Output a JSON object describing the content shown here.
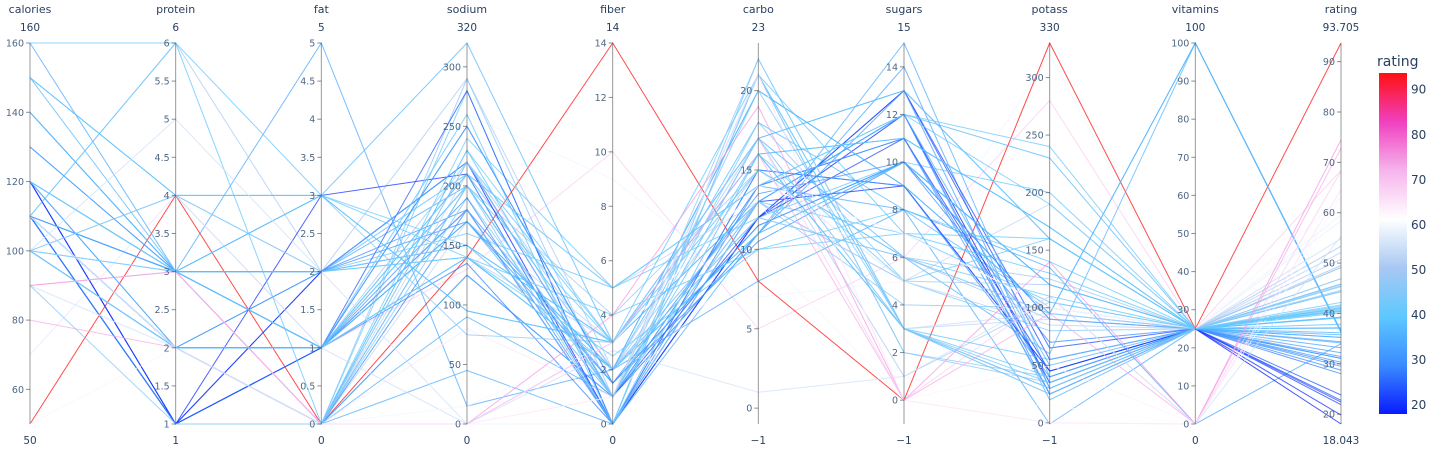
{
  "chart_data": {
    "type": "parallel_coordinates",
    "color_dimension": "rating",
    "colorbar": {
      "title": "rating",
      "range": [
        18.043,
        93.705
      ],
      "ticks": [
        20,
        30,
        40,
        50,
        60,
        70,
        80,
        90
      ],
      "colorscale": [
        "#0a1bff",
        "#3a8bff",
        "#5ec8ff",
        "#a8c8f2",
        "#ffffff",
        "#f6b4ec",
        "#f040c0",
        "#ff1010"
      ]
    },
    "axes": [
      {
        "label": "calories",
        "min": 50,
        "max": 160,
        "min_label": "50",
        "max_label": "160",
        "ticks": [
          60,
          80,
          100,
          120,
          140,
          160
        ]
      },
      {
        "label": "protein",
        "min": 1,
        "max": 6,
        "min_label": "1",
        "max_label": "6",
        "ticks": [
          1,
          1.5,
          2,
          2.5,
          3,
          3.5,
          4,
          4.5,
          5,
          5.5,
          6
        ]
      },
      {
        "label": "fat",
        "min": 0,
        "max": 5,
        "min_label": "0",
        "max_label": "5",
        "ticks": [
          0,
          0.5,
          1,
          1.5,
          2,
          2.5,
          3,
          3.5,
          4,
          4.5,
          5
        ]
      },
      {
        "label": "sodium",
        "min": 0,
        "max": 320,
        "min_label": "0",
        "max_label": "320",
        "ticks": [
          0,
          50,
          100,
          150,
          200,
          250,
          300
        ]
      },
      {
        "label": "fiber",
        "min": 0,
        "max": 14,
        "min_label": "0",
        "max_label": "14",
        "ticks": [
          0,
          2,
          4,
          6,
          8,
          10,
          12,
          14
        ]
      },
      {
        "label": "carbo",
        "min": -1,
        "max": 23,
        "min_label": "−1",
        "max_label": "23",
        "ticks": [
          0,
          5,
          10,
          15,
          20
        ]
      },
      {
        "label": "sugars",
        "min": -1,
        "max": 15,
        "min_label": "−1",
        "max_label": "15",
        "ticks": [
          0,
          2,
          4,
          6,
          8,
          10,
          12,
          14
        ]
      },
      {
        "label": "potass",
        "min": -1,
        "max": 330,
        "min_label": "−1",
        "max_label": "330",
        "ticks": [
          0,
          50,
          100,
          150,
          200,
          250,
          300
        ]
      },
      {
        "label": "vitamins",
        "min": 0,
        "max": 100,
        "min_label": "0",
        "max_label": "100",
        "ticks": [
          0,
          10,
          20,
          30,
          40,
          50,
          60,
          70,
          80,
          90,
          100
        ]
      },
      {
        "label": "rating",
        "min": 18.043,
        "max": 93.705,
        "min_label": "18.043",
        "max_label": "93.705",
        "ticks": [
          20,
          30,
          40,
          50,
          60,
          70,
          80,
          90
        ]
      }
    ],
    "series": [
      {
        "values": [
          70,
          4,
          1,
          130,
          10,
          5,
          6,
          280,
          25,
          68.4
        ]
      },
      {
        "values": [
          120,
          3,
          5,
          15,
          2,
          8,
          8,
          135,
          0,
          33.98
        ]
      },
      {
        "values": [
          70,
          4,
          1,
          260,
          9,
          7,
          5,
          320,
          25,
          59.43
        ]
      },
      {
        "values": [
          50,
          4,
          0,
          140,
          14,
          8,
          0,
          330,
          25,
          93.7
        ]
      },
      {
        "values": [
          110,
          2,
          2,
          200,
          1,
          14,
          8,
          -1,
          25,
          34.38
        ]
      },
      {
        "values": [
          110,
          2,
          2,
          180,
          1.5,
          10.5,
          10,
          70,
          25,
          29.51
        ]
      },
      {
        "values": [
          110,
          2,
          0,
          125,
          1,
          11,
          14,
          30,
          25,
          33.17
        ]
      },
      {
        "values": [
          130,
          3,
          2,
          210,
          2,
          18,
          8,
          100,
          25,
          37.04
        ]
      },
      {
        "values": [
          90,
          2,
          1,
          200,
          4,
          15,
          6,
          125,
          25,
          49.12
        ]
      },
      {
        "values": [
          90,
          3,
          0,
          210,
          5,
          13,
          5,
          190,
          25,
          53.31
        ]
      },
      {
        "values": [
          120,
          1,
          2,
          220,
          0,
          12,
          12,
          35,
          25,
          18.04
        ]
      },
      {
        "values": [
          110,
          6,
          2,
          290,
          2,
          17,
          1,
          105,
          25,
          50.76
        ]
      },
      {
        "values": [
          120,
          1,
          3,
          210,
          0,
          13,
          9,
          45,
          25,
          19.82
        ]
      },
      {
        "values": [
          110,
          3,
          2,
          140,
          2,
          13,
          7,
          105,
          25,
          40.4
        ]
      },
      {
        "values": [
          110,
          1,
          1,
          180,
          0,
          12,
          13,
          55,
          25,
          22.74
        ]
      },
      {
        "values": [
          110,
          2,
          0,
          280,
          0,
          22,
          3,
          25,
          25,
          41.45
        ]
      },
      {
        "values": [
          100,
          2,
          0,
          290,
          1,
          21,
          2,
          35,
          25,
          45.86
        ]
      },
      {
        "values": [
          110,
          1,
          0,
          90,
          1,
          13,
          12,
          20,
          25,
          35.78
        ]
      },
      {
        "values": [
          110,
          1,
          1,
          180,
          0,
          12,
          13,
          65,
          25,
          22.4
        ]
      },
      {
        "values": [
          110,
          3,
          3,
          140,
          4,
          10,
          7,
          160,
          25,
          40.45
        ]
      },
      {
        "values": [
          100,
          3,
          0,
          80,
          1,
          21,
          0,
          0,
          0,
          64.53
        ]
      },
      {
        "values": [
          110,
          2,
          0,
          220,
          1,
          21,
          3,
          30,
          25,
          46.9
        ]
      },
      {
        "values": [
          100,
          2,
          1,
          140,
          2,
          11,
          10,
          120,
          25,
          36.18
        ]
      },
      {
        "values": [
          100,
          2,
          0,
          190,
          1,
          18,
          5,
          80,
          25,
          44.33
        ]
      },
      {
        "values": [
          110,
          1,
          0,
          125,
          1,
          11,
          13,
          30,
          25,
          32.21
        ]
      },
      {
        "values": [
          110,
          1,
          0,
          200,
          1,
          14,
          11,
          25,
          25,
          31.44
        ]
      },
      {
        "values": [
          100,
          3,
          0,
          0,
          3,
          14,
          7,
          100,
          25,
          58.35
        ]
      },
      {
        "values": [
          120,
          3,
          2,
          160,
          5,
          12,
          10,
          200,
          25,
          40.92
        ]
      },
      {
        "values": [
          120,
          3,
          0,
          240,
          5,
          14,
          12,
          190,
          25,
          41.02
        ]
      },
      {
        "values": [
          110,
          1,
          1,
          135,
          0,
          13,
          12,
          25,
          25,
          28.03
        ]
      },
      {
        "values": [
          100,
          2,
          0,
          45,
          0,
          11,
          15,
          40,
          25,
          35.25
        ]
      },
      {
        "values": [
          110,
          1,
          1,
          280,
          0,
          15,
          9,
          45,
          25,
          23.8
        ]
      },
      {
        "values": [
          100,
          3,
          1,
          140,
          3,
          15,
          5,
          85,
          25,
          52.08
        ]
      },
      {
        "values": [
          110,
          3,
          0,
          170,
          3,
          17,
          3,
          90,
          25,
          53.37
        ]
      },
      {
        "values": [
          120,
          3,
          3,
          75,
          3,
          13,
          4,
          100,
          25,
          45.81
        ]
      },
      {
        "values": [
          120,
          1,
          2,
          220,
          1,
          12,
          11,
          45,
          25,
          21.87
        ]
      },
      {
        "values": [
          110,
          3,
          1,
          250,
          1.5,
          11.5,
          10,
          90,
          25,
          31.07
        ]
      },
      {
        "values": [
          110,
          1,
          0,
          180,
          0,
          14,
          11,
          35,
          25,
          28.74
        ]
      },
      {
        "values": [
          110,
          2,
          1,
          170,
          1,
          17,
          6,
          60,
          100,
          36.52
        ]
      },
      {
        "values": [
          140,
          3,
          1,
          170,
          2,
          20,
          9,
          95,
          100,
          36.47
        ]
      },
      {
        "values": [
          110,
          2,
          1,
          260,
          0,
          21,
          3,
          40,
          25,
          39.24
        ]
      },
      {
        "values": [
          100,
          4,
          2,
          150,
          2,
          12,
          6,
          95,
          25,
          45.33
        ]
      },
      {
        "values": [
          110,
          2,
          1,
          180,
          0,
          21,
          2,
          40,
          25,
          44.59
        ]
      },
      {
        "values": [
          100,
          4,
          1,
          0,
          0,
          16,
          3,
          95,
          25,
          54.85
        ]
      },
      {
        "values": [
          150,
          3,
          3,
          320,
          3,
          13,
          12,
          230,
          25,
          37.14
        ]
      },
      {
        "values": [
          160,
          3,
          2,
          150,
          3,
          17,
          13,
          160,
          25,
          34.14
        ]
      },
      {
        "values": [
          140,
          3,
          2,
          220,
          3,
          21,
          7,
          130,
          25,
          39.26
        ]
      },
      {
        "values": [
          130,
          3,
          2,
          170,
          1.5,
          13.5,
          10,
          120,
          25,
          30.31
        ]
      },
      {
        "values": [
          150,
          4,
          3,
          95,
          3,
          16,
          11,
          170,
          25,
          40.1
        ]
      },
      {
        "values": [
          120,
          2,
          1,
          190,
          0,
          15,
          9,
          40,
          25,
          29.92
        ]
      },
      {
        "values": [
          100,
          2,
          1,
          220,
          2,
          15,
          6,
          90,
          25,
          49.12
        ]
      },
      {
        "values": [
          140,
          3,
          1,
          170,
          2,
          20,
          9,
          95,
          100,
          36.18
        ]
      },
      {
        "values": [
          110,
          3,
          1,
          140,
          2,
          13,
          5,
          120,
          25,
          49.51
        ]
      },
      {
        "values": [
          110,
          3,
          0,
          230,
          3,
          16,
          5,
          160,
          25,
          41.7
        ]
      },
      {
        "values": [
          90,
          2,
          0,
          15,
          3,
          15,
          5,
          90,
          25,
          59.64
        ]
      },
      {
        "values": [
          150,
          4,
          3,
          95,
          3,
          16,
          11,
          170,
          25,
          37.84
        ]
      },
      {
        "values": [
          100,
          3,
          0,
          0,
          3,
          14,
          7,
          100,
          25,
          60.76
        ]
      },
      {
        "values": [
          100,
          3,
          1,
          200,
          3,
          15,
          6,
          110,
          25,
          40.56
        ]
      },
      {
        "values": [
          100,
          3,
          0,
          0,
          3,
          14,
          7,
          100,
          25,
          63.01
        ]
      },
      {
        "values": [
          50,
          1,
          0,
          0,
          0,
          13,
          0,
          15,
          0,
          60.76
        ]
      },
      {
        "values": [
          50,
          2,
          0,
          0,
          1,
          10,
          0,
          50,
          0,
          63.01
        ]
      },
      {
        "values": [
          100,
          2,
          1,
          140,
          2,
          11,
          10,
          120,
          25,
          39.1
        ]
      },
      {
        "values": [
          80,
          2,
          0,
          0,
          3,
          16,
          0,
          95,
          0,
          72.8
        ]
      },
      {
        "values": [
          90,
          3,
          0,
          0,
          3,
          17,
          0,
          110,
          0,
          68.24
        ]
      },
      {
        "values": [
          90,
          3,
          0,
          0,
          4,
          19,
          0,
          140,
          0,
          74.47
        ]
      },
      {
        "values": [
          110,
          2,
          0,
          220,
          1,
          22,
          3,
          30,
          25,
          46.9
        ]
      },
      {
        "values": [
          110,
          2,
          1,
          200,
          0,
          16,
          3,
          35,
          25,
          42.2
        ]
      },
      {
        "values": [
          110,
          6,
          0,
          230,
          1,
          16,
          3,
          55,
          25,
          39.26
        ]
      },
      {
        "values": [
          100,
          2,
          0,
          200,
          1,
          20,
          3,
          30,
          25,
          44.33
        ]
      },
      {
        "values": [
          120,
          2,
          1,
          210,
          0,
          13,
          12,
          50,
          25,
          35.25
        ]
      },
      {
        "values": [
          110,
          2,
          0,
          0,
          1,
          21,
          0,
          0,
          0,
          64.53
        ]
      },
      {
        "values": [
          100,
          5,
          2,
          0,
          2.7,
          1,
          1,
          110,
          0,
          55.33
        ]
      },
      {
        "values": [
          110,
          3,
          1,
          250,
          1.5,
          11.5,
          10,
          90,
          25,
          31.07
        ]
      },
      {
        "values": [
          100,
          3,
          2,
          140,
          2.5,
          10,
          8,
          140,
          25,
          40.69
        ]
      },
      {
        "values": [
          120,
          3,
          1,
          210,
          5,
          14,
          12,
          240,
          25,
          41.2
        ]
      },
      {
        "values": [
          90,
          1,
          0,
          200,
          1,
          17,
          3,
          25,
          25,
          45.5
        ]
      },
      {
        "values": [
          100,
          4,
          2,
          150,
          2,
          12,
          6,
          95,
          25,
          45.81
        ]
      },
      {
        "values": [
          160,
          6,
          3,
          150,
          3,
          17,
          13,
          160,
          25,
          41.0
        ]
      }
    ]
  }
}
